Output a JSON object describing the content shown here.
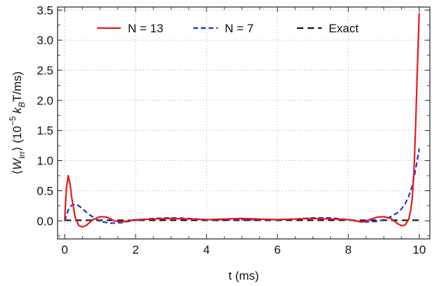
{
  "chart_data": {
    "type": "line",
    "xlabel": "t (ms)",
    "ylabel": {
      "prefix": "⟨",
      "symbol": "W",
      "subscript": "irr",
      "middle": "⟩ (10",
      "exponent": "−5",
      "unit_symbol": "k",
      "unit_subscript": "B",
      "suffix": "T/ms)"
    },
    "xlim": [
      -0.2,
      10.3
    ],
    "ylim": [
      -0.3,
      3.55
    ],
    "xticks": [
      0,
      2,
      4,
      6,
      8,
      10
    ],
    "xtick_labels": [
      "0",
      "2",
      "4",
      "6",
      "8",
      "10"
    ],
    "yticks": [
      0.0,
      0.5,
      1.0,
      1.5,
      2.0,
      2.5,
      3.0,
      3.5
    ],
    "ytick_labels": [
      "0.0",
      "0.5",
      "1.0",
      "1.5",
      "2.0",
      "2.5",
      "3.0",
      "3.5"
    ],
    "grid": true,
    "legend_position": "top",
    "series": [
      {
        "name": "N = 13",
        "color": "#e41a1c",
        "dash": "solid",
        "x": [
          0,
          0.05,
          0.1,
          0.15,
          0.2,
          0.3,
          0.4,
          0.5,
          0.6,
          0.8,
          1.0,
          1.2,
          1.4,
          1.6,
          2.0,
          2.5,
          3.0,
          3.5,
          4.0,
          4.5,
          5.0,
          5.5,
          6.0,
          6.5,
          7.0,
          7.5,
          8.0,
          8.4,
          8.8,
          9.0,
          9.2,
          9.4,
          9.5,
          9.6,
          9.7,
          9.75,
          9.8,
          9.85,
          9.9,
          9.95,
          10.0
        ],
        "y": [
          0.02,
          0.55,
          0.75,
          0.62,
          0.38,
          0.05,
          -0.08,
          -0.1,
          -0.08,
          0.02,
          0.07,
          0.06,
          0.0,
          -0.02,
          0.02,
          0.03,
          0.04,
          0.03,
          0.02,
          0.03,
          0.04,
          0.03,
          0.02,
          0.03,
          0.04,
          0.03,
          0.02,
          -0.02,
          0.06,
          0.07,
          0.04,
          -0.05,
          -0.08,
          -0.07,
          0.02,
          0.15,
          0.35,
          0.8,
          1.6,
          2.6,
          3.45
        ]
      },
      {
        "name": "N = 7",
        "color": "#1f35d6",
        "dash": "dashed",
        "x": [
          0,
          0.1,
          0.2,
          0.3,
          0.4,
          0.5,
          0.7,
          1.0,
          1.3,
          1.6,
          2.0,
          2.5,
          3.0,
          3.5,
          4.0,
          4.5,
          5.0,
          5.5,
          6.0,
          6.5,
          7.0,
          7.5,
          8.0,
          8.4,
          8.8,
          9.0,
          9.2,
          9.4,
          9.5,
          9.6,
          9.7,
          9.8,
          9.9,
          10.0
        ],
        "y": [
          0.0,
          0.18,
          0.26,
          0.28,
          0.25,
          0.2,
          0.1,
          -0.01,
          -0.04,
          -0.03,
          0.01,
          0.04,
          0.05,
          0.04,
          0.02,
          0.02,
          0.02,
          0.02,
          0.02,
          0.03,
          0.05,
          0.05,
          0.02,
          -0.02,
          -0.01,
          0.02,
          0.07,
          0.14,
          0.2,
          0.28,
          0.4,
          0.58,
          0.86,
          1.2
        ]
      },
      {
        "name": "Exact",
        "color": "#111111",
        "dash": "dashed",
        "x": [
          0,
          10
        ],
        "y": [
          0.01,
          0.01
        ]
      }
    ]
  }
}
